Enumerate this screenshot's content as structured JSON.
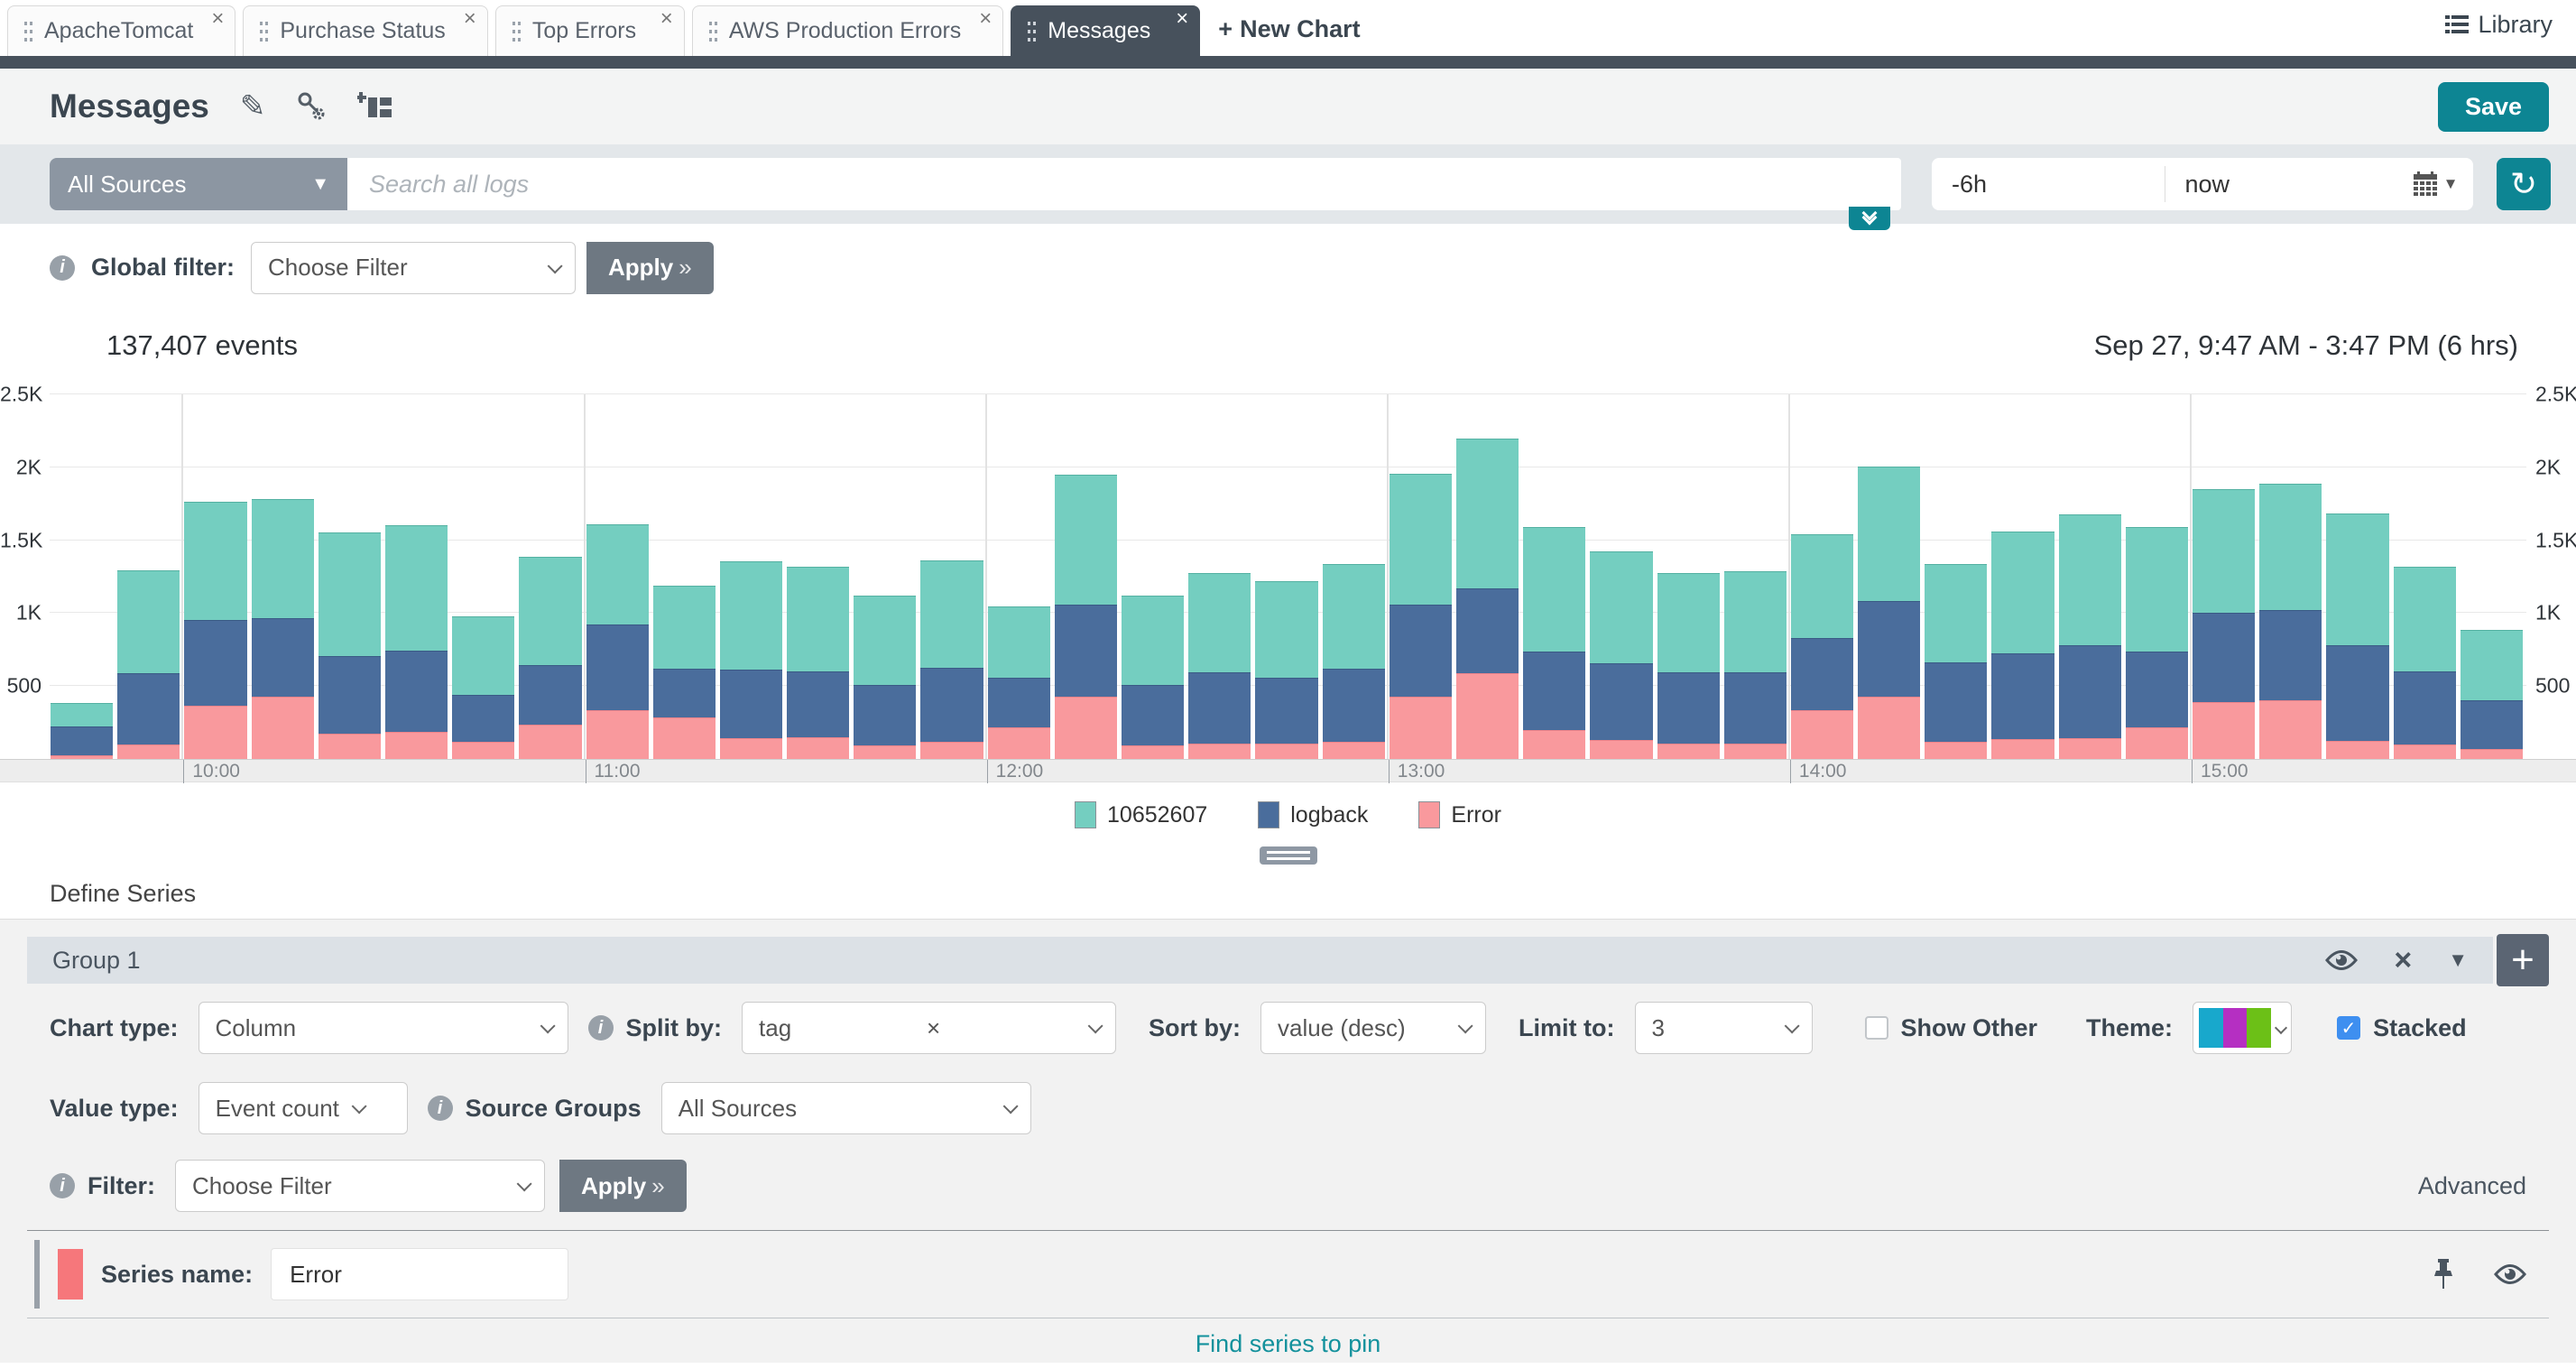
{
  "icons": {
    "refresh": "↻",
    "pencil": "✎",
    "close": "×",
    "plus": "+",
    "triangle_down": "▼",
    "double_chevron": "»",
    "check": "✓",
    "info": "i"
  },
  "tabbar": {
    "tabs": [
      {
        "label": "ApacheTomcat",
        "active": false
      },
      {
        "label": "Purchase Status",
        "active": false
      },
      {
        "label": "Top Errors",
        "active": false
      },
      {
        "label": "AWS Production Errors",
        "active": false
      },
      {
        "label": "Messages",
        "active": true
      }
    ],
    "new_chart_plus": "+",
    "new_chart_label": "New Chart",
    "library_label": "Library"
  },
  "header": {
    "title": "Messages",
    "save_label": "Save"
  },
  "search": {
    "sources_value": "All Sources",
    "placeholder": "Search all logs",
    "time_from": "-6h",
    "time_to": "now"
  },
  "global_filter": {
    "label": "Global filter:",
    "select_value": "Choose Filter",
    "apply_label": "Apply"
  },
  "chart_header": {
    "events": "137,407 events",
    "range": "Sep 27, 9:47 AM - 3:47 PM  (6 hrs)"
  },
  "chart_data": {
    "type": "bar",
    "stacked": true,
    "title": "137,407 events",
    "time_range_label": "Sep 27, 9:47 AM - 3:47 PM (6 hrs)",
    "ylim": [
      0,
      2500
    ],
    "y_ticks": [
      500,
      1000,
      1500,
      2000,
      2500
    ],
    "y_tick_labels": [
      "500",
      "1K",
      "1.5K",
      "2K",
      "2.5K"
    ],
    "x_tick_labels": [
      "10:00",
      "11:00",
      "12:00",
      "13:00",
      "14:00",
      "15:00"
    ],
    "x_tick_bar_index": [
      2,
      8,
      14,
      20,
      26,
      32
    ],
    "grid": true,
    "legend_position": "bottom",
    "legend_order": [
      "10652607",
      "logback",
      "Error"
    ],
    "series": [
      {
        "name": "Error",
        "color": "#f9999d",
        "seam": "#ef8489",
        "values": [
          25,
          100,
          365,
          430,
          175,
          185,
          120,
          235,
          335,
          285,
          145,
          150,
          95,
          115,
          215,
          430,
          90,
          105,
          105,
          115,
          430,
          590,
          200,
          130,
          105,
          105,
          335,
          430,
          120,
          135,
          145,
          215,
          390,
          400,
          125,
          100,
          65
        ]
      },
      {
        "name": "logback",
        "color": "#4a6d9c",
        "seam": "#3a5a85",
        "values": [
          195,
          490,
          590,
          540,
          530,
          560,
          320,
          410,
          590,
          335,
          470,
          450,
          415,
          505,
          340,
          630,
          415,
          490,
          450,
          500,
          630,
          580,
          540,
          525,
          490,
          490,
          495,
          655,
          545,
          585,
          635,
          520,
          610,
          620,
          655,
          500,
          335
        ]
      },
      {
        "name": "10652607",
        "color": "#74cec0",
        "seam": "#54b1a2",
        "values": [
          160,
          705,
          810,
          815,
          845,
          860,
          540,
          745,
          685,
          570,
          740,
          720,
          615,
          735,
          490,
          890,
          610,
          680,
          665,
          715,
          895,
          1025,
          855,
          765,
          680,
          690,
          710,
          920,
          675,
          835,
          900,
          855,
          850,
          865,
          905,
          715,
          480
        ]
      }
    ]
  },
  "define_series": {
    "heading": "Define Series",
    "group_title": "Group 1",
    "row1": {
      "chart_type_label": "Chart type:",
      "chart_type_value": "Column",
      "split_by_label": "Split by:",
      "split_by_value": "tag",
      "sort_by_label": "Sort by:",
      "sort_by_value": "value (desc)",
      "limit_label": "Limit to:",
      "limit_value": "3",
      "show_other_label": "Show Other",
      "show_other_checked": false,
      "theme_label": "Theme:",
      "theme_colors": [
        "#18a8cc",
        "#b52fc2",
        "#6cc017"
      ],
      "stacked_label": "Stacked",
      "stacked_checked": true
    },
    "row2": {
      "value_type_label": "Value type:",
      "value_type_value": "Event count",
      "source_groups_label": "Source Groups",
      "source_groups_value": "All Sources"
    },
    "row3": {
      "filter_label": "Filter:",
      "filter_value": "Choose Filter",
      "apply_label": "Apply",
      "advanced_label": "Advanced"
    },
    "series_row": {
      "name_label": "Series name:",
      "name_value": "Error",
      "color": "#f6777b"
    },
    "find_series_label": "Find series to pin"
  },
  "colors": {
    "accent_teal": "#0d8593",
    "dark_slate": "#47515c",
    "apply_gray": "#6e7882",
    "link_teal": "#13919c",
    "group_bar": "#dce1e6",
    "section_bg": "#f2f2f2"
  }
}
